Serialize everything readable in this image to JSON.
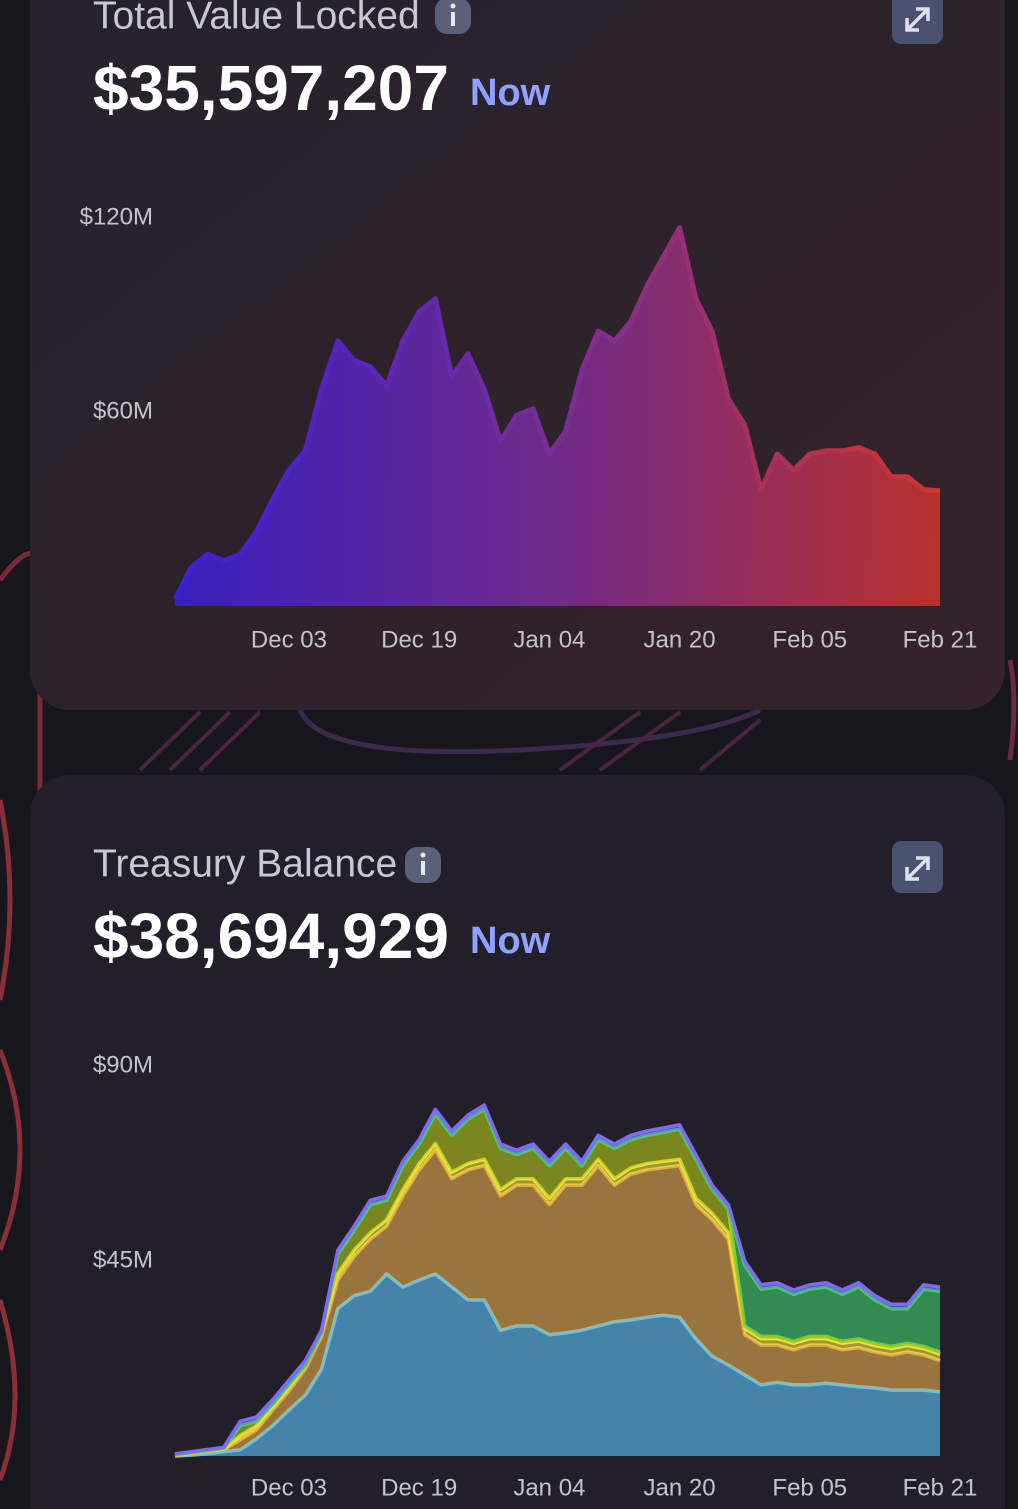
{
  "chart_data": [
    {
      "type": "area",
      "title": "Total Value Locked",
      "headline": "$35,597,207",
      "headline_note": "Now",
      "x": [
        "Nov 19",
        "Nov 21",
        "Nov 23",
        "Nov 25",
        "Nov 27",
        "Nov 29",
        "Dec 01",
        "Dec 03",
        "Dec 05",
        "Dec 07",
        "Dec 09",
        "Dec 11",
        "Dec 13",
        "Dec 15",
        "Dec 17",
        "Dec 19",
        "Dec 21",
        "Dec 23",
        "Dec 25",
        "Dec 27",
        "Dec 29",
        "Dec 31",
        "Jan 02",
        "Jan 04",
        "Jan 06",
        "Jan 08",
        "Jan 10",
        "Jan 12",
        "Jan 14",
        "Jan 16",
        "Jan 18",
        "Jan 20",
        "Jan 22",
        "Jan 24",
        "Jan 26",
        "Jan 28",
        "Jan 30",
        "Feb 01",
        "Feb 03",
        "Feb 05",
        "Feb 07",
        "Feb 09",
        "Feb 11",
        "Feb 13",
        "Feb 15",
        "Feb 17",
        "Feb 19",
        "Feb 21"
      ],
      "values": [
        2,
        12,
        16,
        14,
        16,
        23,
        33,
        42,
        48,
        67,
        82,
        76,
        74,
        68,
        82,
        91,
        95,
        71,
        78,
        67,
        51,
        59,
        61,
        47,
        54,
        73,
        85,
        82,
        88,
        99,
        108,
        117,
        95,
        85,
        64,
        56,
        36,
        47,
        42,
        47,
        48,
        48,
        49,
        47,
        40,
        40,
        36,
        35.6
      ],
      "color": [
        "#3a1fd8",
        "#7b2c9a",
        "#d0342c"
      ],
      "ylim": [
        0,
        120
      ],
      "yticks": [
        {
          "value": 60,
          "label": "$60M"
        },
        {
          "value": 120,
          "label": "$120M"
        }
      ],
      "xticks": [
        "Dec 03",
        "Dec 19",
        "Jan 04",
        "Jan 20",
        "Feb 05",
        "Feb 21"
      ]
    },
    {
      "type": "stacked_area",
      "title": "Treasury Balance",
      "headline": "$38,694,929",
      "headline_note": "Now",
      "x": [
        "Nov 19",
        "Nov 21",
        "Nov 23",
        "Nov 25",
        "Nov 27",
        "Nov 29",
        "Dec 01",
        "Dec 03",
        "Dec 05",
        "Dec 07",
        "Dec 09",
        "Dec 11",
        "Dec 13",
        "Dec 15",
        "Dec 17",
        "Dec 19",
        "Dec 21",
        "Dec 23",
        "Dec 25",
        "Dec 27",
        "Dec 29",
        "Dec 31",
        "Jan 02",
        "Jan 04",
        "Jan 06",
        "Jan 08",
        "Jan 10",
        "Jan 12",
        "Jan 14",
        "Jan 16",
        "Jan 18",
        "Jan 20",
        "Jan 22",
        "Jan 24",
        "Jan 26",
        "Jan 28",
        "Jan 30",
        "Feb 01",
        "Feb 03",
        "Feb 05",
        "Feb 07",
        "Feb 09",
        "Feb 11",
        "Feb 13",
        "Feb 15",
        "Feb 17",
        "Feb 19",
        "Feb 21"
      ],
      "series": [
        {
          "color": "#5bc4f5",
          "values": [
            0,
            0.2,
            0.5,
            1,
            1.4,
            4,
            7,
            10.6,
            14,
            20,
            34,
            37,
            38,
            42,
            39,
            40.6,
            42,
            39,
            36,
            36,
            29,
            30,
            30,
            28,
            28.4,
            29,
            30,
            31,
            31.4,
            32,
            32.5,
            32,
            27,
            23,
            21,
            18.7,
            16.4,
            17,
            16.4,
            16.4,
            16.8,
            16.4,
            16,
            15.7,
            15.2,
            15.2,
            15.2,
            14.8
          ]
        },
        {
          "color": "#e0a94c",
          "values": [
            0,
            0.3,
            0.5,
            0.4,
            2.3,
            2,
            3.6,
            4.4,
            6,
            7.5,
            6.6,
            9,
            12,
            11,
            21,
            25.4,
            28.6,
            25,
            30,
            31,
            31,
            32.5,
            32.5,
            30,
            34.1,
            33.5,
            37,
            31.5,
            33.6,
            34,
            34,
            35,
            31,
            31.5,
            29,
            9.3,
            9.2,
            8.6,
            8.1,
            9.2,
            8.8,
            8.1,
            9,
            8.3,
            8.1,
            8.8,
            8.1,
            7.2
          ]
        },
        {
          "color": "#ece23a",
          "values": [
            0.2,
            0.2,
            0.2,
            0.2,
            1,
            1,
            1,
            1,
            1,
            1,
            1.5,
            1.5,
            1.5,
            1.5,
            1.5,
            1.5,
            1.5,
            1.5,
            1.5,
            1.5,
            1.5,
            1.5,
            1.5,
            1.5,
            1.5,
            1.5,
            1.5,
            1.5,
            1.5,
            1.5,
            1.5,
            1.5,
            1.5,
            1.5,
            1.5,
            1.5,
            1.5,
            1.5,
            1.5,
            1.5,
            1.5,
            1.5,
            1.5,
            1.5,
            1.5,
            1.5,
            1.5,
            1.5
          ]
        },
        {
          "color": "#b2c618",
          "values": [
            0.1,
            0.1,
            0.1,
            0.2,
            2.3,
            1,
            0.4,
            0.5,
            0,
            0,
            4.4,
            4.5,
            6.5,
            4.5,
            5.5,
            4.5,
            6.9,
            8.5,
            10.2,
            11.5,
            9.5,
            5.6,
            7,
            7.5,
            7,
            3,
            4.5,
            7,
            6.5,
            6.5,
            6.7,
            6.9,
            9,
            5.5,
            5.5,
            0.5,
            0.5,
            0.5,
            0.5,
            0.5,
            0.5,
            0.5,
            0.5,
            0.5,
            0.5,
            0.5,
            0.5,
            0.5
          ]
        },
        {
          "color": "#3ecf6a",
          "values": [
            0,
            0,
            0,
            0,
            0,
            0,
            0,
            0,
            0,
            0,
            0,
            0,
            0,
            0,
            0,
            0,
            0,
            0,
            0,
            0,
            0,
            0,
            0,
            0,
            0,
            0,
            0,
            0,
            0,
            0,
            0,
            0,
            0,
            0,
            0,
            14,
            10.9,
            11.4,
            10.8,
            10.9,
            11.4,
            10.8,
            12,
            10,
            8.7,
            8,
            13.2,
            14
          ]
        },
        {
          "color": "#7d6cf0",
          "values": [
            0.2,
            0.2,
            0.2,
            0.2,
            1,
            1,
            1,
            1,
            1,
            0.5,
            1,
            1,
            1,
            1,
            1,
            1,
            1,
            1,
            1,
            1,
            1,
            1,
            1,
            1,
            1,
            1,
            1,
            1,
            1,
            1,
            1,
            1,
            1,
            1,
            1,
            1,
            1,
            1,
            1,
            1,
            1,
            1,
            1,
            1,
            1,
            1,
            1,
            1
          ]
        }
      ],
      "ylim": [
        0,
        90
      ],
      "yticks": [
        {
          "value": 45,
          "label": "$45M"
        },
        {
          "value": 90,
          "label": "$90M"
        }
      ],
      "xticks": [
        "Dec 03",
        "Dec 19",
        "Jan 04",
        "Jan 20",
        "Feb 05",
        "Feb 21"
      ]
    }
  ]
}
